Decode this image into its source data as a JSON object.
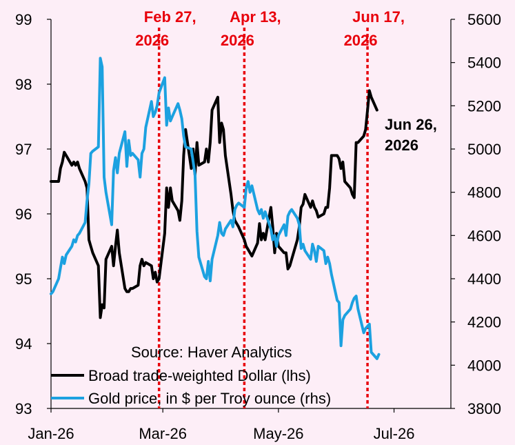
{
  "chart_data": {
    "type": "line",
    "source": "Source: Haver Analytics",
    "x_ticks": [
      "Jan-26",
      "Mar-26",
      "May-26",
      "Jul-26"
    ],
    "y_left_ticks": [
      "93",
      "94",
      "95",
      "96",
      "97",
      "98",
      "99"
    ],
    "y_right_ticks": [
      "3800",
      "4000",
      "4200",
      "4400",
      "4600",
      "4800",
      "5000",
      "5200",
      "5400",
      "5600"
    ],
    "ylim_left": [
      93,
      99
    ],
    "ylim_right": [
      3800,
      5600
    ],
    "xlim": [
      "2026-01-01",
      "2026-07-31"
    ],
    "events": [
      {
        "date": "2026-02-27",
        "line1": "Feb 27,",
        "line2": "2026"
      },
      {
        "date": "2026-04-13",
        "line1": "Apr 13,",
        "line2": "2026"
      },
      {
        "date": "2026-06-17",
        "line1": "Jun 17,",
        "line2": "2026"
      }
    ],
    "annotation": {
      "date": "2026-06-26",
      "line1": "Jun 26,",
      "line2": "2026"
    },
    "colors": {
      "dollar": "#000000",
      "gold": "#1ca1e0",
      "event": "#e8000b",
      "background": "#fdeef7"
    },
    "series": [
      {
        "name": "Broad trade-weighted Dollar (lhs)",
        "axis": "left",
        "points": [
          [
            "2026-01-01",
            96.5
          ],
          [
            "2026-01-02",
            96.5
          ],
          [
            "2026-01-05",
            96.5
          ],
          [
            "2026-01-06",
            96.7
          ],
          [
            "2026-01-07",
            96.8
          ],
          [
            "2026-01-08",
            96.95
          ],
          [
            "2026-01-09",
            96.9
          ],
          [
            "2026-01-12",
            96.75
          ],
          [
            "2026-01-13",
            96.8
          ],
          [
            "2026-01-14",
            96.75
          ],
          [
            "2026-01-15",
            96.8
          ],
          [
            "2026-01-16",
            96.7
          ],
          [
            "2026-01-19",
            96.5
          ],
          [
            "2026-01-20",
            96.4
          ],
          [
            "2026-01-21",
            95.6
          ],
          [
            "2026-01-22",
            95.5
          ],
          [
            "2026-01-23",
            95.4
          ],
          [
            "2026-01-26",
            95.2
          ],
          [
            "2026-01-27",
            94.4
          ],
          [
            "2026-01-28",
            94.6
          ],
          [
            "2026-01-29",
            94.55
          ],
          [
            "2026-01-30",
            95.3
          ],
          [
            "2026-02-02",
            95.5
          ],
          [
            "2026-02-03",
            95.2
          ],
          [
            "2026-02-04",
            95.5
          ],
          [
            "2026-02-05",
            95.75
          ],
          [
            "2026-02-06",
            95.4
          ],
          [
            "2026-02-09",
            94.85
          ],
          [
            "2026-02-10",
            94.8
          ],
          [
            "2026-02-11",
            94.8
          ],
          [
            "2026-02-12",
            94.85
          ],
          [
            "2026-02-13",
            94.85
          ],
          [
            "2026-02-16",
            94.9
          ],
          [
            "2026-02-17",
            95.2
          ],
          [
            "2026-02-18",
            95.3
          ],
          [
            "2026-02-19",
            95.2
          ],
          [
            "2026-02-20",
            95.25
          ],
          [
            "2026-02-23",
            95.2
          ],
          [
            "2026-02-24",
            95.0
          ],
          [
            "2026-02-25",
            95.1
          ],
          [
            "2026-02-26",
            94.95
          ],
          [
            "2026-02-27",
            95.0
          ],
          [
            "2026-03-02",
            95.7
          ],
          [
            "2026-03-03",
            96.4
          ],
          [
            "2026-03-04",
            96.1
          ],
          [
            "2026-03-05",
            96.4
          ],
          [
            "2026-03-06",
            96.2
          ],
          [
            "2026-03-09",
            96.05
          ],
          [
            "2026-03-10",
            95.9
          ],
          [
            "2026-03-11",
            96.2
          ],
          [
            "2026-03-12",
            96.9
          ],
          [
            "2026-03-13",
            97.3
          ],
          [
            "2026-03-16",
            96.7
          ],
          [
            "2026-03-17",
            97.0
          ],
          [
            "2026-03-18",
            96.6
          ],
          [
            "2026-03-19",
            97.1
          ],
          [
            "2026-03-20",
            96.75
          ],
          [
            "2026-03-23",
            96.8
          ],
          [
            "2026-03-24",
            97.0
          ],
          [
            "2026-03-25",
            96.8
          ],
          [
            "2026-03-26",
            97.1
          ],
          [
            "2026-03-27",
            97.6
          ],
          [
            "2026-03-30",
            97.8
          ],
          [
            "2026-03-31",
            97.1
          ],
          [
            "2026-04-01",
            97.4
          ],
          [
            "2026-04-02",
            97.3
          ],
          [
            "2026-04-03",
            96.9
          ],
          [
            "2026-04-06",
            96.3
          ],
          [
            "2026-04-07",
            96.05
          ],
          [
            "2026-04-08",
            95.9
          ],
          [
            "2026-04-09",
            95.85
          ],
          [
            "2026-04-10",
            95.8
          ],
          [
            "2026-04-13",
            95.6
          ],
          [
            "2026-04-14",
            95.5
          ],
          [
            "2026-04-15",
            95.45
          ],
          [
            "2026-04-16",
            95.4
          ],
          [
            "2026-04-17",
            95.35
          ],
          [
            "2026-04-20",
            95.55
          ],
          [
            "2026-04-21",
            95.85
          ],
          [
            "2026-04-22",
            95.6
          ],
          [
            "2026-04-23",
            95.7
          ],
          [
            "2026-04-24",
            95.6
          ],
          [
            "2026-04-27",
            96.1
          ],
          [
            "2026-04-28",
            95.8
          ],
          [
            "2026-04-29",
            95.4
          ],
          [
            "2026-04-30",
            95.7
          ],
          [
            "2026-05-01",
            95.5
          ],
          [
            "2026-05-04",
            95.4
          ],
          [
            "2026-05-05",
            95.4
          ],
          [
            "2026-05-06",
            95.15
          ],
          [
            "2026-05-07",
            95.2
          ],
          [
            "2026-05-08",
            95.3
          ],
          [
            "2026-05-11",
            95.6
          ],
          [
            "2026-05-12",
            95.8
          ],
          [
            "2026-05-13",
            96.1
          ],
          [
            "2026-05-14",
            96.15
          ],
          [
            "2026-05-15",
            96.3
          ],
          [
            "2026-05-18",
            96.1
          ],
          [
            "2026-05-19",
            96.2
          ],
          [
            "2026-05-20",
            96.1
          ],
          [
            "2026-05-21",
            96.05
          ],
          [
            "2026-05-22",
            95.95
          ],
          [
            "2026-05-25",
            96.0
          ],
          [
            "2026-05-26",
            96.1
          ],
          [
            "2026-05-27",
            96.1
          ],
          [
            "2026-05-28",
            96.4
          ],
          [
            "2026-05-29",
            96.9
          ],
          [
            "2026-06-01",
            96.9
          ],
          [
            "2026-06-02",
            96.85
          ],
          [
            "2026-06-03",
            96.7
          ],
          [
            "2026-06-04",
            96.8
          ],
          [
            "2026-06-05",
            96.5
          ],
          [
            "2026-06-08",
            96.4
          ],
          [
            "2026-06-09",
            96.3
          ],
          [
            "2026-06-10",
            96.25
          ],
          [
            "2026-06-11",
            97.1
          ],
          [
            "2026-06-12",
            97.1
          ],
          [
            "2026-06-15",
            97.2
          ],
          [
            "2026-06-16",
            97.3
          ],
          [
            "2026-06-17",
            97.6
          ],
          [
            "2026-06-18",
            97.9
          ],
          [
            "2026-06-19",
            97.8
          ],
          [
            "2026-06-22",
            97.6
          ]
        ]
      },
      {
        "name": "Gold price, in $ per Troy ounce (rhs)",
        "axis": "right",
        "points": [
          [
            "2026-01-01",
            4330
          ],
          [
            "2026-01-02",
            4340
          ],
          [
            "2026-01-05",
            4400
          ],
          [
            "2026-01-06",
            4450
          ],
          [
            "2026-01-07",
            4500
          ],
          [
            "2026-01-08",
            4470
          ],
          [
            "2026-01-09",
            4510
          ],
          [
            "2026-01-12",
            4550
          ],
          [
            "2026-01-13",
            4580
          ],
          [
            "2026-01-14",
            4570
          ],
          [
            "2026-01-15",
            4600
          ],
          [
            "2026-01-16",
            4610
          ],
          [
            "2026-01-19",
            4660
          ],
          [
            "2026-01-20",
            4760
          ],
          [
            "2026-01-21",
            4840
          ],
          [
            "2026-01-22",
            4980
          ],
          [
            "2026-01-23",
            4990
          ],
          [
            "2026-01-26",
            5010
          ],
          [
            "2026-01-27",
            5420
          ],
          [
            "2026-01-28",
            5380
          ],
          [
            "2026-01-29",
            4870
          ],
          [
            "2026-01-30",
            4800
          ],
          [
            "2026-02-02",
            4650
          ],
          [
            "2026-02-03",
            4900
          ],
          [
            "2026-02-04",
            4960
          ],
          [
            "2026-02-05",
            4890
          ],
          [
            "2026-02-06",
            4980
          ],
          [
            "2026-02-09",
            5080
          ],
          [
            "2026-02-10",
            4920
          ],
          [
            "2026-02-11",
            5040
          ],
          [
            "2026-02-12",
            4970
          ],
          [
            "2026-02-13",
            4980
          ],
          [
            "2026-02-16",
            4950
          ],
          [
            "2026-02-17",
            4870
          ],
          [
            "2026-02-18",
            4980
          ],
          [
            "2026-02-19",
            5000
          ],
          [
            "2026-02-20",
            5100
          ],
          [
            "2026-02-23",
            5220
          ],
          [
            "2026-02-24",
            5150
          ],
          [
            "2026-02-25",
            5170
          ],
          [
            "2026-02-26",
            5200
          ],
          [
            "2026-02-27",
            5260
          ],
          [
            "2026-03-02",
            5330
          ],
          [
            "2026-03-03",
            5110
          ],
          [
            "2026-03-04",
            5190
          ],
          [
            "2026-03-05",
            5130
          ],
          [
            "2026-03-06",
            5150
          ],
          [
            "2026-03-09",
            5210
          ],
          [
            "2026-03-10",
            5180
          ],
          [
            "2026-03-11",
            5140
          ],
          [
            "2026-03-12",
            5060
          ],
          [
            "2026-03-13",
            5010
          ],
          [
            "2026-03-16",
            5000
          ],
          [
            "2026-03-17",
            4940
          ],
          [
            "2026-03-18",
            4880
          ],
          [
            "2026-03-19",
            4620
          ],
          [
            "2026-03-20",
            4500
          ],
          [
            "2026-03-23",
            4410
          ],
          [
            "2026-03-24",
            4400
          ],
          [
            "2026-03-25",
            4480
          ],
          [
            "2026-03-26",
            4390
          ],
          [
            "2026-03-27",
            4490
          ],
          [
            "2026-03-30",
            4600
          ],
          [
            "2026-03-31",
            4660
          ],
          [
            "2026-04-01",
            4610
          ],
          [
            "2026-04-02",
            4600
          ],
          [
            "2026-04-03",
            4630
          ],
          [
            "2026-04-06",
            4670
          ],
          [
            "2026-04-07",
            4640
          ],
          [
            "2026-04-08",
            4720
          ],
          [
            "2026-04-09",
            4740
          ],
          [
            "2026-04-10",
            4750
          ],
          [
            "2026-04-13",
            4730
          ],
          [
            "2026-04-14",
            4820
          ],
          [
            "2026-04-15",
            4850
          ],
          [
            "2026-04-16",
            4800
          ],
          [
            "2026-04-17",
            4830
          ],
          [
            "2026-04-20",
            4720
          ],
          [
            "2026-04-21",
            4700
          ],
          [
            "2026-04-22",
            4720
          ],
          [
            "2026-04-23",
            4680
          ],
          [
            "2026-04-24",
            4710
          ],
          [
            "2026-04-27",
            4630
          ],
          [
            "2026-04-28",
            4580
          ],
          [
            "2026-04-29",
            4600
          ],
          [
            "2026-04-30",
            4550
          ],
          [
            "2026-05-01",
            4600
          ],
          [
            "2026-05-04",
            4650
          ],
          [
            "2026-05-05",
            4600
          ],
          [
            "2026-05-06",
            4690
          ],
          [
            "2026-05-07",
            4710
          ],
          [
            "2026-05-08",
            4720
          ],
          [
            "2026-05-11",
            4680
          ],
          [
            "2026-05-12",
            4650
          ],
          [
            "2026-05-13",
            4540
          ],
          [
            "2026-05-14",
            4560
          ],
          [
            "2026-05-15",
            4530
          ],
          [
            "2026-05-18",
            4490
          ],
          [
            "2026-05-19",
            4560
          ],
          [
            "2026-05-20",
            4530
          ],
          [
            "2026-05-21",
            4480
          ],
          [
            "2026-05-22",
            4550
          ],
          [
            "2026-05-25",
            4530
          ],
          [
            "2026-05-26",
            4470
          ],
          [
            "2026-05-27",
            4500
          ],
          [
            "2026-05-28",
            4470
          ],
          [
            "2026-05-29",
            4420
          ],
          [
            "2026-06-01",
            4300
          ],
          [
            "2026-06-02",
            4290
          ],
          [
            "2026-06-03",
            4090
          ],
          [
            "2026-06-04",
            4210
          ],
          [
            "2026-06-05",
            4230
          ],
          [
            "2026-06-08",
            4260
          ],
          [
            "2026-06-09",
            4290
          ],
          [
            "2026-06-10",
            4310
          ],
          [
            "2026-06-11",
            4320
          ],
          [
            "2026-06-12",
            4260
          ],
          [
            "2026-06-15",
            4150
          ],
          [
            "2026-06-16",
            4170
          ],
          [
            "2026-06-17",
            4180
          ],
          [
            "2026-06-18",
            4190
          ],
          [
            "2026-06-19",
            4060
          ],
          [
            "2026-06-22",
            4030
          ],
          [
            "2026-06-23",
            4050
          ]
        ]
      }
    ]
  }
}
